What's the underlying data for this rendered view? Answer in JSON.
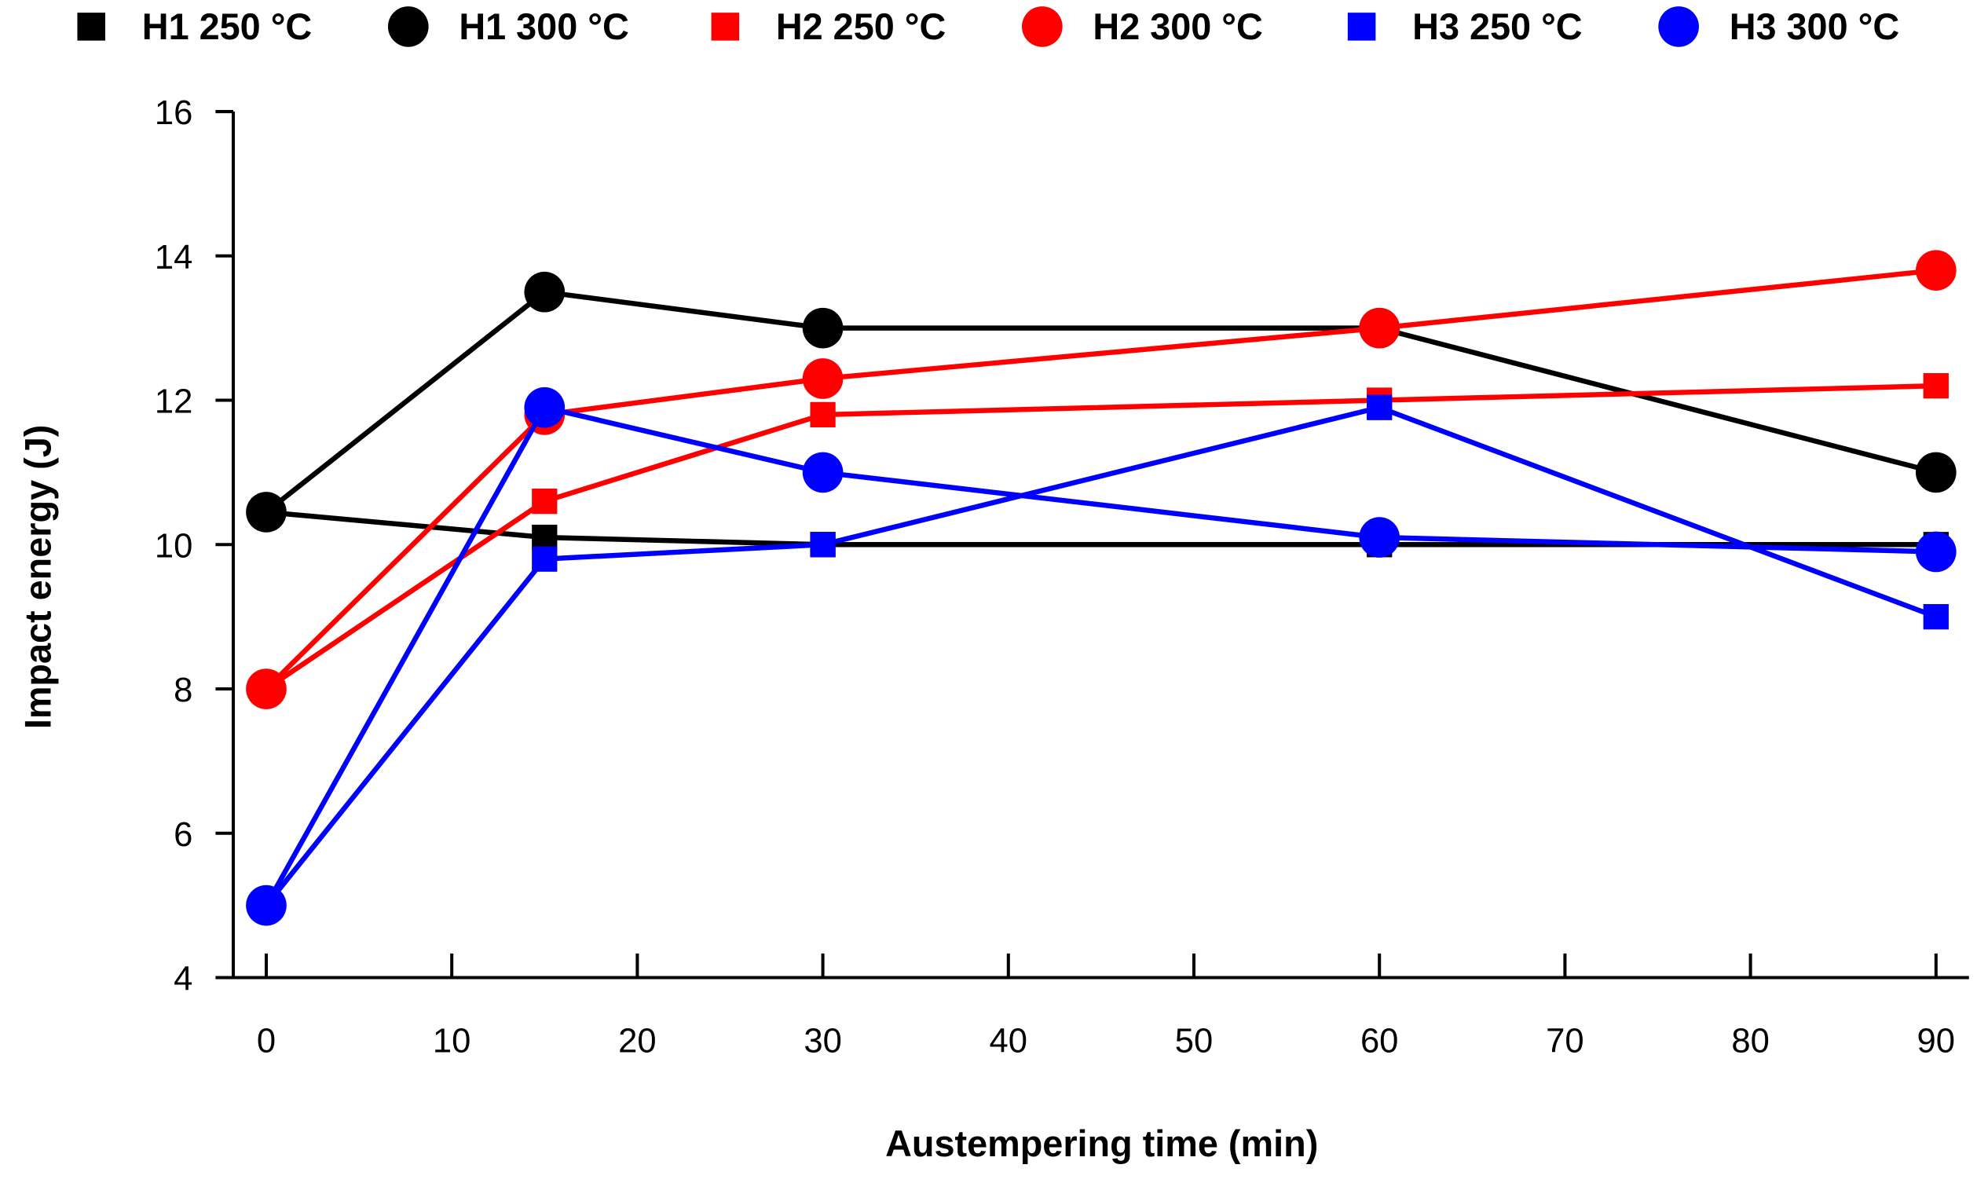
{
  "chart_data": {
    "type": "line",
    "title": "",
    "xlabel": "Austempering time (min)",
    "ylabel": "Impact energy (J)",
    "xlim": [
      -2,
      92
    ],
    "ylim": [
      4,
      16
    ],
    "xticks": [
      0,
      10,
      20,
      30,
      40,
      50,
      60,
      70,
      80,
      90
    ],
    "yticks": [
      4,
      6,
      8,
      10,
      12,
      14,
      16
    ],
    "grid": false,
    "legend_position": "top",
    "x": [
      0,
      15,
      30,
      60,
      90
    ],
    "series": [
      {
        "name": "H1 250 °C",
        "color": "#000000",
        "marker": "square",
        "values": [
          10.45,
          10.1,
          10.0,
          10.0,
          10.0
        ]
      },
      {
        "name": "H1 300 °C",
        "color": "#000000",
        "marker": "circle",
        "values": [
          10.45,
          13.5,
          13.0,
          13.0,
          11.0
        ]
      },
      {
        "name": "H2 250 °C",
        "color": "#ff0000",
        "marker": "square",
        "values": [
          8.0,
          10.6,
          11.8,
          12.0,
          12.2
        ]
      },
      {
        "name": "H2 300 °C",
        "color": "#ff0000",
        "marker": "circle",
        "values": [
          8.0,
          11.8,
          12.3,
          13.0,
          13.8
        ]
      },
      {
        "name": "H3 250 °C",
        "color": "#0000ff",
        "marker": "square",
        "values": [
          5.0,
          9.8,
          10.0,
          11.9,
          9.0
        ]
      },
      {
        "name": "H3 300 °C",
        "color": "#0000ff",
        "marker": "circle",
        "values": [
          5.0,
          11.9,
          11.0,
          10.1,
          9.9
        ]
      }
    ]
  }
}
